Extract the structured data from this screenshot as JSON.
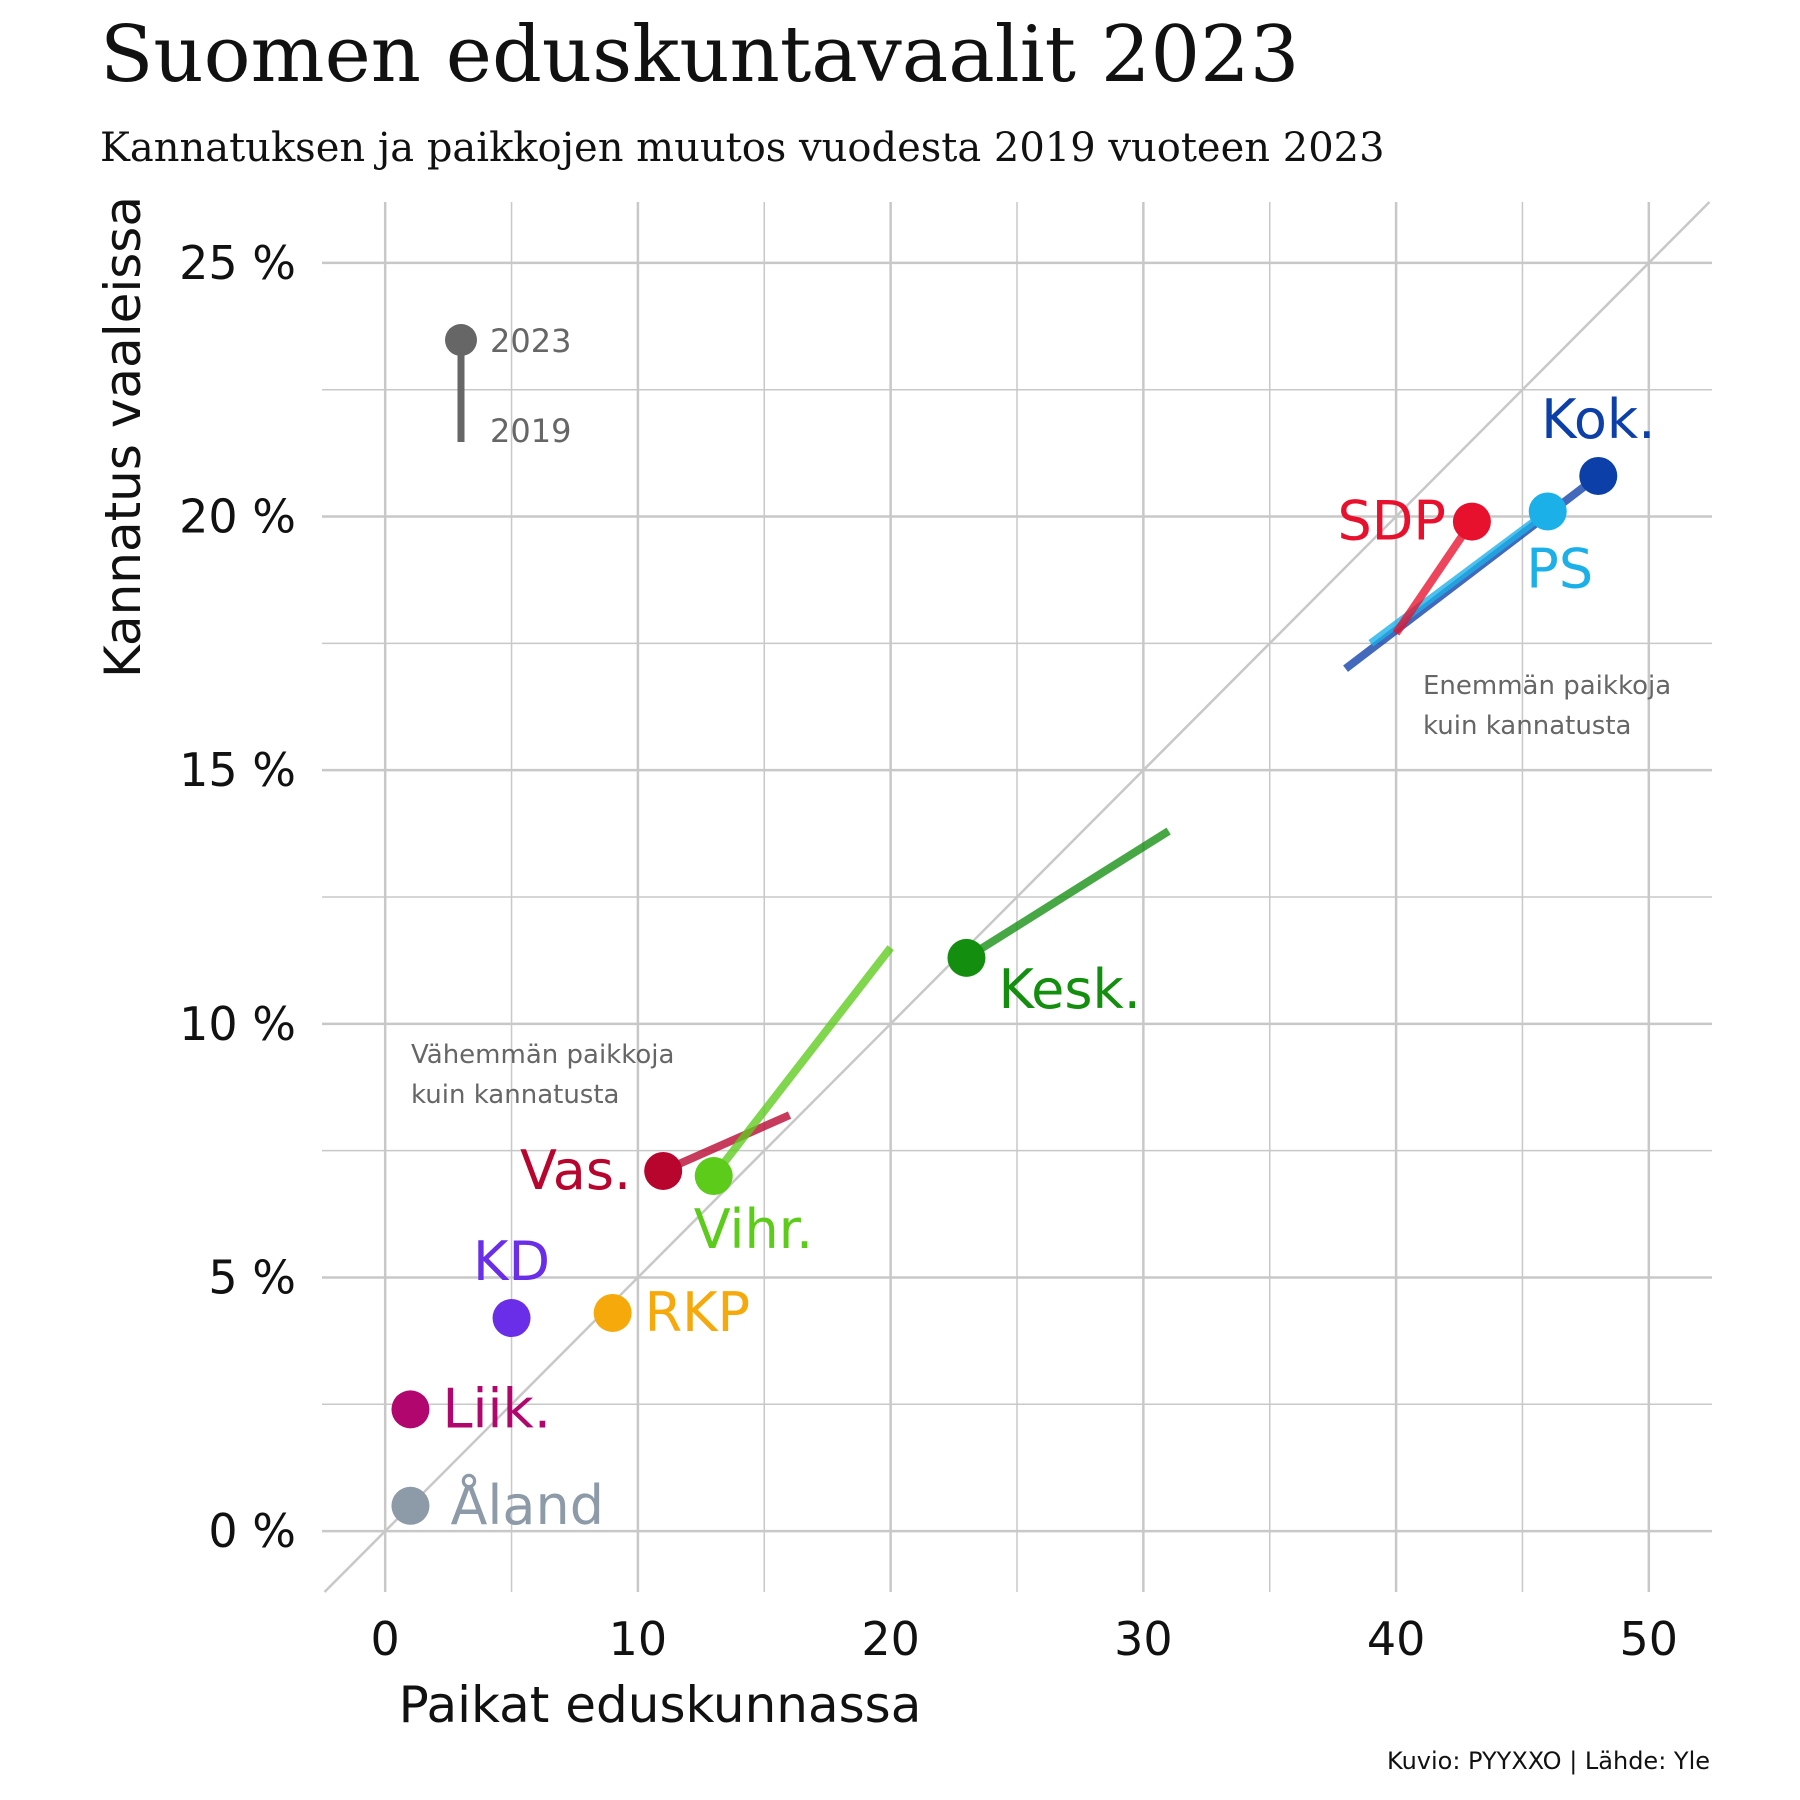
{
  "chart_data": {
    "type": "scatter",
    "title": "Suomen eduskuntavaalit 2023",
    "subtitle": "Kannatuksen ja paikkojen muutos vuodesta 2019 vuoteen 2023",
    "xlabel": "Paikat eduskunnassa",
    "ylabel": "Kannatus vaaleissa",
    "xlim": [
      -2.5,
      52.5
    ],
    "ylim": [
      -1.2,
      26.2
    ],
    "x_ticks": [
      0,
      10,
      20,
      30,
      40,
      50
    ],
    "x_tick_labels": [
      "0",
      "10",
      "20",
      "30",
      "40",
      "50"
    ],
    "y_ticks": [
      0,
      5,
      10,
      15,
      20,
      25
    ],
    "y_tick_labels": [
      "0 %",
      "5 %",
      "10 %",
      "15 %",
      "20 %",
      "25 %"
    ],
    "reference_line": {
      "slope": 0.5,
      "intercept": 0
    },
    "annotations": {
      "more_seats": [
        "Enemmän paikkoja",
        "kuin kannatusta"
      ],
      "fewer_seats": [
        "Vähemmän paikkoja",
        "kuin kannatusta"
      ]
    },
    "legend": {
      "label_2023": "2023",
      "label_2019": "2019",
      "placement": "top-left"
    },
    "series": [
      {
        "name": "Kok.",
        "color": "#0d3fa8",
        "seats_2019": 38,
        "support_2019": 17.0,
        "seats_2023": 48,
        "support_2023": 20.8
      },
      {
        "name": "SDP",
        "color": "#e8112d",
        "seats_2019": 40,
        "support_2019": 17.7,
        "seats_2023": 43,
        "support_2023": 19.9
      },
      {
        "name": "PS",
        "color": "#1bb0e8",
        "seats_2019": 39,
        "support_2019": 17.5,
        "seats_2023": 46,
        "support_2023": 20.1
      },
      {
        "name": "Kesk.",
        "color": "#138e0f",
        "seats_2019": 31,
        "support_2019": 13.8,
        "seats_2023": 23,
        "support_2023": 11.3
      },
      {
        "name": "Vihr.",
        "color": "#5ccb1a",
        "seats_2019": 20,
        "support_2019": 11.5,
        "seats_2023": 13,
        "support_2023": 7.0
      },
      {
        "name": "Vas.",
        "color": "#b7052e",
        "seats_2019": 16,
        "support_2019": 8.2,
        "seats_2023": 11,
        "support_2023": 7.1
      },
      {
        "name": "RKP",
        "color": "#f6a90b",
        "seats_2019": null,
        "support_2019": null,
        "seats_2023": 9,
        "support_2023": 4.3
      },
      {
        "name": "KD",
        "color": "#6a2ee8",
        "seats_2019": null,
        "support_2019": null,
        "seats_2023": 5,
        "support_2023": 4.2
      },
      {
        "name": "Liik.",
        "color": "#b0066d",
        "seats_2019": null,
        "support_2019": null,
        "seats_2023": 1,
        "support_2023": 2.4
      },
      {
        "name": "Åland",
        "color": "#8d9aa8",
        "seats_2019": null,
        "support_2019": null,
        "seats_2023": 1,
        "support_2023": 0.5
      }
    ]
  },
  "caption": "Kuvio: PYYXXO | Lähde: Yle"
}
